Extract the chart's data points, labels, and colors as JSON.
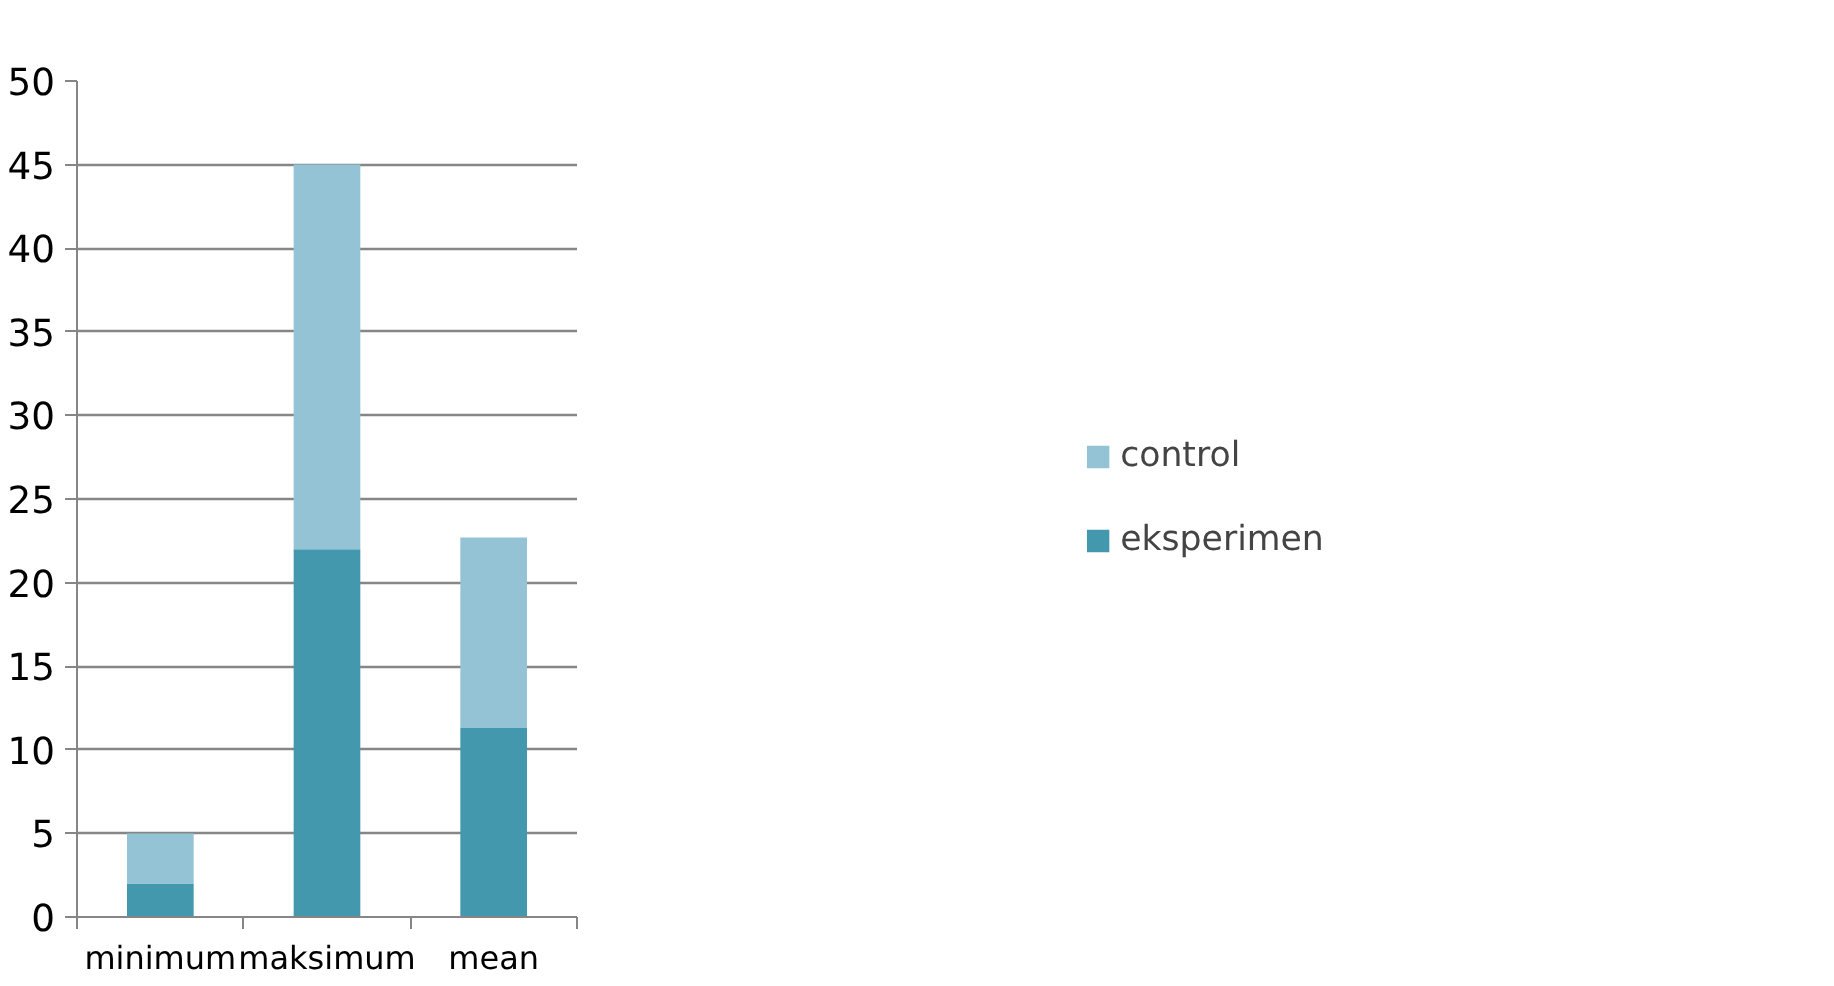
{
  "chart_data": {
    "type": "bar",
    "stacked": true,
    "categories": [
      "minimum",
      "maksimum",
      "mean"
    ],
    "series": [
      {
        "name": "eksperimen",
        "color": "#4398ae",
        "values": [
          2,
          22,
          11.3
        ]
      },
      {
        "name": "control",
        "color": "#93c3d5",
        "values": [
          3,
          23,
          11.4
        ]
      }
    ],
    "ylim": [
      0,
      50
    ],
    "yticks": [
      0,
      5,
      10,
      15,
      20,
      25,
      30,
      35,
      40,
      45,
      50
    ],
    "grid": "y",
    "legend": "right"
  }
}
